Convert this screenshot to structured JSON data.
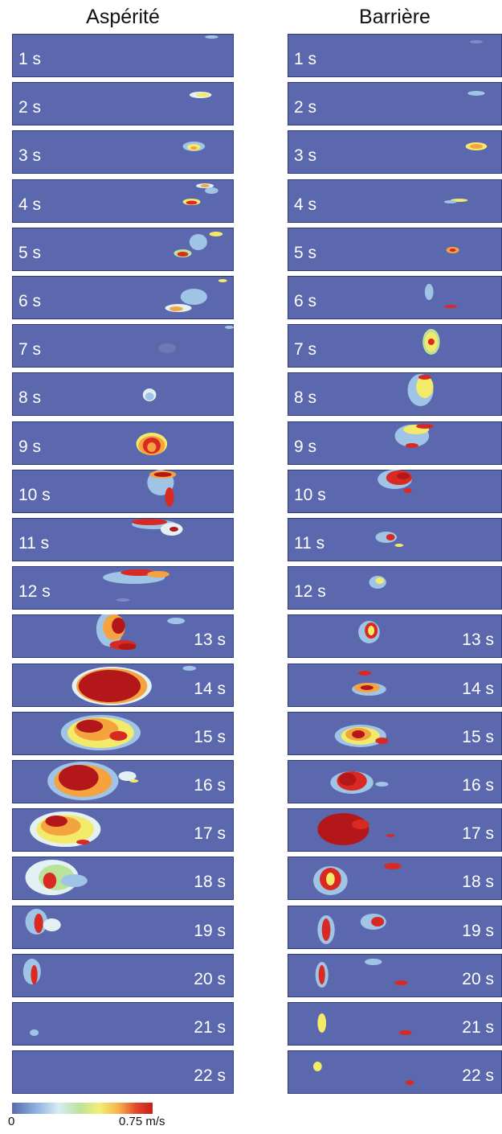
{
  "columns": {
    "left": {
      "title": "Aspérité",
      "panels": [
        "1 s",
        "2 s",
        "3 s",
        "4 s",
        "5 s",
        "6 s",
        "7 s",
        "8 s",
        "9 s",
        "10 s",
        "11 s",
        "12 s",
        "13 s",
        "14 s",
        "15 s",
        "16 s",
        "17 s",
        "18 s",
        "19 s",
        "20 s",
        "21 s",
        "22 s"
      ]
    },
    "right": {
      "title": "Barrière",
      "panels": [
        "1 s",
        "2 s",
        "3 s",
        "4 s",
        "5 s",
        "6 s",
        "7 s",
        "8 s",
        "9 s",
        "10 s",
        "11 s",
        "12 s",
        "13 s",
        "14 s",
        "15 s",
        "16 s",
        "17 s",
        "18 s",
        "19 s",
        "20 s",
        "21 s",
        "22 s"
      ]
    }
  },
  "colorbar": {
    "min_label": "0",
    "max_label": "0.75 m/s",
    "colors": [
      "#5b68ad",
      "#8fb5df",
      "#d7ebf4",
      "#bde39b",
      "#f2ef74",
      "#f6b14b",
      "#e34a2a",
      "#c81d1e"
    ]
  }
}
